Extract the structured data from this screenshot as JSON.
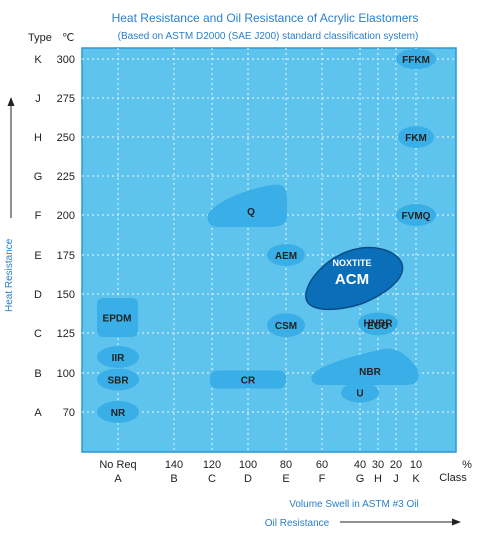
{
  "chart_data": {
    "type": "scatter",
    "title": "Heat Resistance and Oil Resistance of Acrylic Elastomers",
    "subtitle": "(Based on ASTM D2000 (SAE J200) standard classification system)",
    "ylabel": "Heat Resistance",
    "xlabel": "Volume Swell in ASTM #3 Oil",
    "xlabel2": "Oil Resistance",
    "y_header_type": "Type",
    "y_header_unit": "℃",
    "x_unit": "%",
    "x_class_label": "Class",
    "y_ticks": [
      {
        "type": "K",
        "value": 300
      },
      {
        "type": "J",
        "value": 275
      },
      {
        "type": "H",
        "value": 250
      },
      {
        "type": "G",
        "value": 225
      },
      {
        "type": "F",
        "value": 200
      },
      {
        "type": "E",
        "value": 175
      },
      {
        "type": "D",
        "value": 150
      },
      {
        "type": "C",
        "value": 125
      },
      {
        "type": "B",
        "value": 100
      },
      {
        "type": "A",
        "value": 70
      }
    ],
    "x_ticks": [
      {
        "value": "No Req",
        "cls": "A"
      },
      {
        "value": "140",
        "cls": "B"
      },
      {
        "value": "120",
        "cls": "C"
      },
      {
        "value": "100",
        "cls": "D"
      },
      {
        "value": "80",
        "cls": "E"
      },
      {
        "value": "60",
        "cls": "F"
      },
      {
        "value": "40",
        "cls": "G"
      },
      {
        "value": "30",
        "cls": "H"
      },
      {
        "value": "20",
        "cls": "J"
      },
      {
        "value": "10",
        "cls": "K"
      }
    ],
    "materials": [
      {
        "name": "FFKM",
        "x": 10,
        "y": 300
      },
      {
        "name": "FKM",
        "x": 10,
        "y": 250
      },
      {
        "name": "FVMQ",
        "x": 10,
        "y": 200
      },
      {
        "name": "Q",
        "x_range": [
          120,
          80
        ],
        "y_range": [
          200,
          225
        ]
      },
      {
        "name": "AEM",
        "x": 80,
        "y": 175
      },
      {
        "name": "ACM",
        "brand": "NOXTITE",
        "x_range": [
          60,
          20
        ],
        "y_range": [
          140,
          175
        ],
        "highlight": true
      },
      {
        "name": "HNBR",
        "x": 30,
        "y": 140
      },
      {
        "name": "CSM",
        "x": 80,
        "y": 130
      },
      {
        "name": "ECO",
        "x": 30,
        "y": 130
      },
      {
        "name": "EPDM",
        "value_x": "No Req",
        "y_range": [
          125,
          150
        ]
      },
      {
        "name": "IIR",
        "value_x": "No Req",
        "y": 110
      },
      {
        "name": "SBR",
        "value_x": "No Req",
        "y": 95
      },
      {
        "name": "NR",
        "value_x": "No Req",
        "y": 70
      },
      {
        "name": "CR",
        "x_range": [
          120,
          80
        ],
        "y": 95
      },
      {
        "name": "NBR",
        "x_range": [
          60,
          20
        ],
        "y_range": [
          100,
          115
        ]
      },
      {
        "name": "U",
        "x": 40,
        "y": 85
      }
    ],
    "grid": true,
    "colors": {
      "plot_bg": "#5ec4ee",
      "blob": "#3aaee6",
      "acm": "#0a6fb8",
      "accent_text": "#2a7fc9"
    }
  }
}
